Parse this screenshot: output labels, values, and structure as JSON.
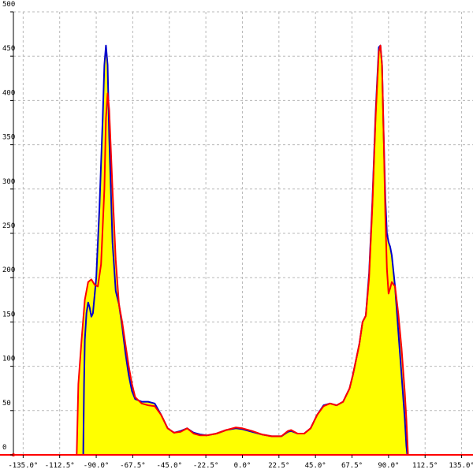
{
  "chart_data": {
    "type": "area",
    "title": "",
    "xlabel": "",
    "ylabel": "",
    "xlim": [
      -141,
      142
    ],
    "ylim": [
      0,
      500
    ],
    "x_ticks": [
      -135,
      -112.5,
      -90,
      -67.5,
      -45,
      -22.5,
      0,
      22.5,
      45,
      67.5,
      90,
      112.5,
      135
    ],
    "x_tick_labels": [
      "-135.0°",
      "-112.5°",
      "-90.0°",
      "-67.5°",
      "-45.0°",
      "-22.5°",
      "0.0°",
      "22.5°",
      "45.0°",
      "67.5°",
      "90.0°",
      "112.5°",
      "135.0°"
    ],
    "y_ticks": [
      0,
      50,
      100,
      150,
      200,
      250,
      300,
      350,
      400,
      450,
      500
    ],
    "y_tick_labels": [
      "0",
      "50",
      "100",
      "150",
      "200",
      "250",
      "300",
      "350",
      "400",
      "450",
      "500"
    ],
    "grid": true,
    "fill_color": "#ffff00",
    "series": [
      {
        "color": "#ff0000",
        "x": [
          -141,
          -102,
          -101,
          -99,
          -97,
          -95,
          -93,
          -91,
          -89,
          -87,
          -85,
          -84,
          -83,
          -82,
          -80,
          -78,
          -76,
          -74,
          -72,
          -70,
          -68,
          -66,
          -62,
          -58,
          -54,
          -50,
          -46,
          -42,
          -38,
          -34,
          -30,
          -26,
          -22,
          -16,
          -10,
          -4,
          0,
          6,
          12,
          18,
          24,
          28,
          30,
          34,
          38,
          42,
          46,
          50,
          54,
          58,
          62,
          66,
          68,
          72,
          74,
          76,
          78,
          80,
          82,
          84,
          85,
          86,
          87,
          88,
          89,
          90,
          91,
          92,
          94,
          96,
          98,
          100,
          101,
          102,
          142
        ],
        "y": [
          0,
          0,
          80,
          130,
          175,
          195,
          198,
          192,
          190,
          215,
          300,
          380,
          408,
          390,
          300,
          220,
          170,
          150,
          125,
          100,
          80,
          65,
          58,
          56,
          55,
          45,
          30,
          25,
          26,
          30,
          24,
          22,
          22,
          24,
          28,
          31,
          30,
          27,
          23,
          21,
          21,
          27,
          28,
          24,
          24,
          30,
          45,
          55,
          58,
          56,
          60,
          75,
          90,
          125,
          150,
          157,
          200,
          280,
          380,
          455,
          462,
          440,
          360,
          270,
          210,
          182,
          188,
          195,
          190,
          160,
          120,
          70,
          40,
          0,
          0
        ]
      },
      {
        "color": "#0000cc",
        "x": [
          -98,
          -97.5,
          -97,
          -96,
          -95,
          -94,
          -93,
          -92,
          -90,
          -88,
          -86,
          -85,
          -84,
          -83,
          -82,
          -80,
          -78,
          -76,
          -74,
          -72,
          -70,
          -68,
          -66,
          -62,
          -58,
          -54,
          -50,
          -46,
          -42,
          -38,
          -34,
          -30,
          -26,
          -22,
          -16,
          -10,
          -4,
          0,
          6,
          12,
          18,
          24,
          28,
          30,
          34,
          38,
          42,
          46,
          50,
          54,
          58,
          62,
          66,
          68,
          72,
          74,
          76,
          78,
          80,
          82,
          84,
          85,
          86,
          87,
          88,
          89,
          90,
          91,
          92,
          94,
          96,
          98,
          100,
          101,
          101.5
        ],
        "y": [
          0,
          80,
          130,
          160,
          172,
          166,
          156,
          160,
          200,
          280,
          380,
          440,
          462,
          440,
          360,
          240,
          185,
          170,
          145,
          115,
          90,
          72,
          63,
          60,
          60,
          58,
          45,
          30,
          25,
          27,
          30,
          25,
          23,
          22,
          24,
          28,
          30,
          29,
          26,
          23,
          21,
          21,
          26,
          27,
          24,
          24,
          30,
          45,
          56,
          58,
          56,
          60,
          75,
          90,
          125,
          150,
          157,
          205,
          285,
          385,
          460,
          462,
          440,
          360,
          290,
          250,
          240,
          235,
          225,
          190,
          140,
          90,
          40,
          10,
          0
        ]
      }
    ]
  }
}
